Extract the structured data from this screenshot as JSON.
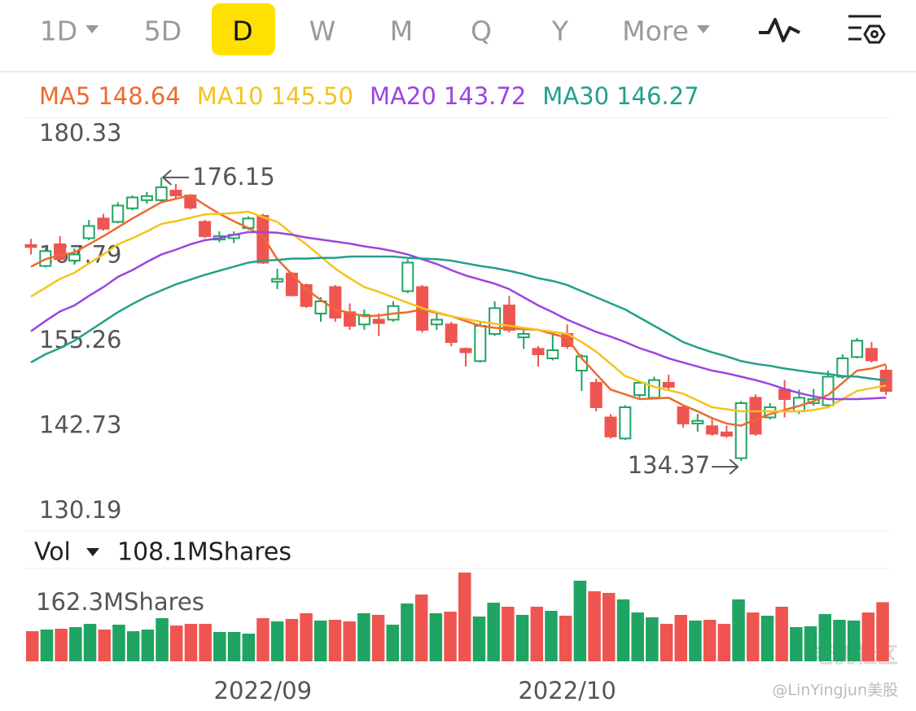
{
  "toolbar": {
    "items": [
      "1D",
      "5D",
      "D",
      "W",
      "M",
      "Q",
      "Y",
      "More"
    ],
    "active": "D",
    "dropdowns": [
      "1D",
      "More"
    ]
  },
  "chart_data": {
    "type": "candlestick",
    "x": [
      null,
      null,
      null,
      null,
      null,
      null,
      null,
      null,
      null,
      null,
      null,
      null,
      null,
      null,
      null,
      null,
      "2022/09",
      null,
      null,
      null,
      null,
      null,
      null,
      null,
      null,
      null,
      null,
      null,
      null,
      null,
      null,
      null,
      null,
      null,
      null,
      null,
      null,
      "2022/10",
      null,
      null,
      null,
      null,
      null,
      null,
      null,
      null,
      null,
      null,
      null,
      null,
      null,
      null,
      null,
      null,
      null,
      null,
      null,
      null,
      null,
      null
    ],
    "open": [
      166.2,
      163.1,
      166.3,
      163.9,
      167.2,
      170.1,
      169.6,
      171.6,
      172.8,
      172.8,
      174.2,
      173.5,
      169.6,
      167.0,
      167.2,
      168.7,
      170.5,
      160.8,
      162.0,
      160.3,
      156.1,
      160.0,
      156.3,
      154.5,
      155.2,
      155.2,
      159.4,
      160.0,
      154.5,
      154.5,
      150.9,
      149.1,
      153.1,
      157.3,
      152.6,
      150.9,
      149.5,
      153.1,
      147.7,
      145.9,
      140.8,
      137.7,
      144.1,
      143.7,
      145.9,
      142.3,
      139.9,
      139.5,
      138.6,
      134.8,
      143.7,
      140.8,
      144.9,
      141.7,
      142.9,
      142.6,
      146.8,
      149.7,
      150.9,
      147.7
    ],
    "high": [
      167.1,
      165.7,
      167.5,
      165.7,
      169.9,
      170.8,
      172.5,
      173.5,
      174.0,
      176.15,
      175.2,
      173.7,
      169.9,
      168.2,
      168.2,
      170.4,
      170.8,
      162.7,
      162.2,
      160.5,
      158.5,
      160.3,
      157.6,
      156.7,
      156.1,
      157.9,
      164.1,
      160.3,
      156.1,
      154.9,
      151.1,
      154.9,
      157.9,
      158.7,
      154.0,
      151.3,
      153.4,
      154.5,
      150.1,
      146.5,
      141.3,
      142.6,
      146.2,
      146.8,
      147.1,
      142.6,
      141.3,
      140.6,
      139.6,
      143.2,
      144.2,
      142.9,
      146.3,
      144.9,
      145.0,
      147.7,
      150.1,
      152.5,
      151.9,
      148.5
    ],
    "low": [
      164.8,
      162.9,
      163.9,
      163.3,
      166.9,
      168.3,
      169.4,
      171.3,
      172.3,
      172.5,
      173.0,
      171.4,
      167.2,
      166.6,
      166.5,
      168.4,
      163.4,
      159.7,
      158.6,
      156.9,
      154.9,
      154.9,
      153.7,
      153.7,
      152.8,
      154.9,
      159.1,
      153.3,
      153.7,
      151.3,
      148.3,
      148.9,
      152.8,
      153.3,
      150.9,
      148.3,
      149.2,
      150.9,
      144.7,
      141.7,
      137.7,
      137.5,
      143.7,
      143.5,
      144.9,
      139.3,
      138.7,
      138.1,
      137.8,
      134.37,
      138.1,
      140.5,
      140.8,
      141.3,
      142.5,
      142.3,
      146.5,
      149.5,
      148.9,
      144.1
    ],
    "close": [
      165.9,
      165.3,
      164.1,
      164.8,
      169.0,
      168.6,
      172.0,
      173.2,
      173.4,
      174.7,
      173.5,
      171.7,
      167.5,
      167.5,
      167.7,
      170.1,
      163.6,
      161.2,
      158.8,
      157.2,
      157.9,
      155.5,
      154.3,
      155.9,
      154.7,
      157.2,
      163.6,
      153.7,
      155.2,
      151.9,
      150.4,
      154.3,
      156.9,
      153.7,
      153.1,
      150.1,
      150.7,
      151.3,
      149.8,
      142.3,
      138.0,
      142.3,
      145.9,
      146.3,
      145.3,
      139.9,
      140.3,
      138.4,
      138.1,
      142.9,
      138.4,
      142.3,
      143.5,
      143.7,
      143.5,
      146.8,
      149.5,
      152.1,
      149.2,
      144.7
    ],
    "up_color": "#1fa463",
    "down_color": "#ee5550",
    "ylim": [
      130.19,
      180.33
    ],
    "yticks": [
      180.33,
      167.79,
      155.26,
      142.73,
      130.19
    ],
    "grid": false,
    "series": [
      {
        "name": "MA5",
        "label": "148.64",
        "color": "#ec6b2d",
        "values": [
          163.0,
          164.1,
          164.7,
          165.1,
          166.3,
          167.5,
          168.8,
          170.1,
          171.3,
          172.5,
          173.0,
          173.5,
          172.1,
          170.8,
          169.7,
          168.7,
          167.5,
          164.1,
          161.9,
          159.7,
          158.1,
          156.7,
          156.2,
          155.7,
          155.8,
          156.1,
          156.3,
          156.7,
          156.2,
          155.7,
          155.0,
          154.3,
          154.0,
          153.9,
          153.8,
          153.7,
          153.1,
          152.5,
          149.5,
          147.2,
          144.9,
          144.2,
          143.5,
          143.6,
          143.7,
          142.6,
          141.7,
          140.7,
          139.9,
          139.6,
          140.5,
          141.3,
          141.9,
          142.5,
          143.2,
          144.1,
          145.9,
          147.7,
          148.0,
          148.64
        ]
      },
      {
        "name": "MA10",
        "label": "145.50",
        "color": "#f4c41a",
        "values": [
          158.6,
          159.9,
          161.2,
          162.1,
          163.5,
          164.8,
          166.3,
          167.2,
          168.2,
          169.3,
          169.7,
          170.2,
          170.7,
          170.8,
          170.9,
          171.1,
          170.3,
          169.6,
          167.9,
          166.3,
          164.5,
          162.7,
          161.3,
          160.0,
          159.3,
          158.5,
          157.7,
          156.9,
          156.3,
          155.7,
          155.3,
          154.9,
          154.6,
          154.3,
          154.0,
          153.7,
          153.4,
          153.1,
          151.9,
          150.5,
          148.7,
          146.9,
          146.1,
          145.3,
          144.8,
          144.3,
          143.3,
          142.3,
          142.0,
          141.7,
          141.7,
          141.7,
          141.7,
          141.7,
          141.9,
          142.3,
          143.5,
          144.7,
          145.1,
          145.5
        ]
      },
      {
        "name": "MA20",
        "label": "143.72",
        "color": "#9b45e0",
        "values": [
          153.5,
          155.0,
          156.4,
          157.3,
          158.7,
          160.0,
          161.5,
          162.5,
          163.7,
          164.8,
          165.5,
          166.3,
          166.9,
          167.2,
          167.7,
          168.1,
          168.1,
          168.0,
          167.7,
          167.3,
          167.0,
          166.7,
          166.4,
          166.0,
          165.7,
          165.3,
          164.8,
          164.1,
          163.4,
          162.5,
          161.7,
          161.1,
          160.5,
          159.7,
          158.5,
          157.3,
          156.3,
          155.2,
          154.3,
          153.4,
          152.7,
          151.9,
          151.0,
          150.3,
          149.5,
          148.9,
          148.3,
          147.7,
          147.3,
          146.8,
          146.3,
          145.7,
          145.0,
          144.4,
          143.9,
          143.5,
          143.5,
          143.5,
          143.6,
          143.72
        ]
      },
      {
        "name": "MA30",
        "label": "146.27",
        "color": "#22a08a",
        "values": [
          148.9,
          150.1,
          151.0,
          152.1,
          153.5,
          154.9,
          156.3,
          157.5,
          158.6,
          159.5,
          160.4,
          161.1,
          161.8,
          162.4,
          163.0,
          163.6,
          163.9,
          164.0,
          164.2,
          164.2,
          164.3,
          164.3,
          164.5,
          164.5,
          164.5,
          164.5,
          164.3,
          164.2,
          164.1,
          163.9,
          163.5,
          163.1,
          162.8,
          162.4,
          161.9,
          161.3,
          160.9,
          160.3,
          159.4,
          158.5,
          157.6,
          156.7,
          155.5,
          154.3,
          153.1,
          151.9,
          151.1,
          150.4,
          149.8,
          149.1,
          148.7,
          148.4,
          148.0,
          147.7,
          147.4,
          147.2,
          146.9,
          146.8,
          146.5,
          146.27
        ]
      }
    ],
    "volume": {
      "name": "Vol",
      "label": "108.1MShares",
      "ylim": [
        0,
        162.3
      ],
      "yticks": [
        {
          "value": 162.3,
          "label": "162.3MShares"
        }
      ],
      "values": [
        55.1,
        58.1,
        59.6,
        62.5,
        68.5,
        58.1,
        67.0,
        55.1,
        58.1,
        78.9,
        65.5,
        68.5,
        68.5,
        53.6,
        53.6,
        50.6,
        78.9,
        73.0,
        77.4,
        87.9,
        74.5,
        75.9,
        73.0,
        87.9,
        84.9,
        67.0,
        105.7,
        122.1,
        87.9,
        90.8,
        162.3,
        81.9,
        107.2,
        99.8,
        84.9,
        99.8,
        92.3,
        83.4,
        147.4,
        128.1,
        125.1,
        113.2,
        89.3,
        80.4,
        68.5,
        84.9,
        74.5,
        75.9,
        68.5,
        113.2,
        89.3,
        83.4,
        99.8,
        62.5,
        64.0,
        86.4,
        75.9,
        74.5,
        89.3,
        108.1
      ]
    }
  },
  "watermark": {
    "brand": "老虎社区",
    "author": "@LinYingjun美股"
  }
}
